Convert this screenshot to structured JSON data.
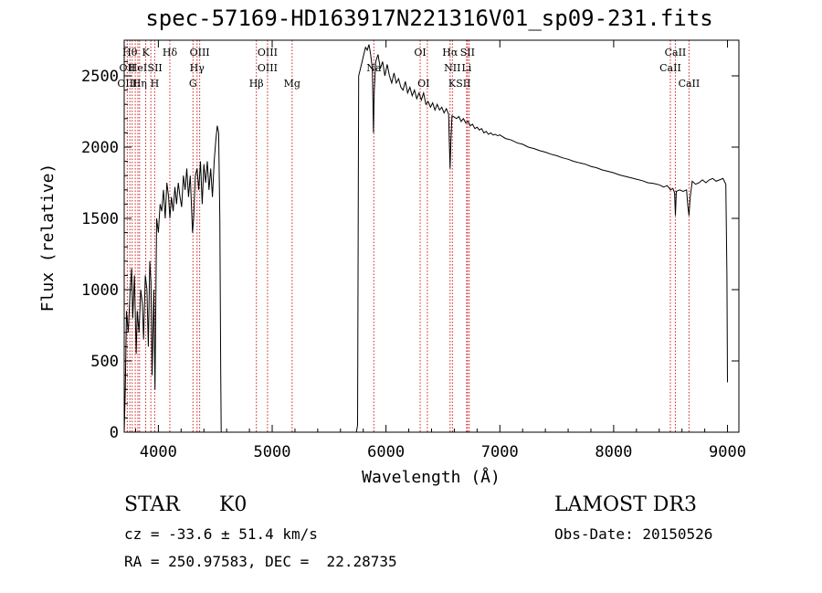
{
  "header": {
    "title": "spec-57169-HD163917N221316V01_sp09-231.fits"
  },
  "chart_data": {
    "type": "line",
    "title": "spec-57169-HD163917N221316V01_sp09-231.fits",
    "xlabel": "Wavelength (Å)",
    "ylabel": "Flux (relative)",
    "xlim": [
      3700,
      9100
    ],
    "ylim": [
      0,
      2750
    ],
    "xticks": [
      4000,
      5000,
      6000,
      7000,
      8000,
      9000
    ],
    "yticks": [
      0,
      500,
      1000,
      1500,
      2000,
      2500
    ],
    "series": [
      {
        "name": "spectrum",
        "segments": [
          [
            [
              3700,
              0
            ],
            [
              3710,
              300
            ],
            [
              3720,
              850
            ],
            [
              3735,
              700
            ],
            [
              3750,
              950
            ],
            [
              3765,
              1150
            ],
            [
              3775,
              800
            ],
            [
              3790,
              1100
            ],
            [
              3805,
              550
            ],
            [
              3815,
              850
            ],
            [
              3830,
              700
            ],
            [
              3845,
              1000
            ],
            [
              3860,
              900
            ],
            [
              3870,
              650
            ],
            [
              3885,
              1100
            ],
            [
              3900,
              1000
            ],
            [
              3912,
              600
            ],
            [
              3925,
              1200
            ],
            [
              3935,
              1050
            ],
            [
              3945,
              400
            ],
            [
              3960,
              1000
            ],
            [
              3970,
              300
            ],
            [
              3985,
              1500
            ],
            [
              4000,
              1400
            ],
            [
              4015,
              1600
            ],
            [
              4030,
              1550
            ],
            [
              4045,
              1700
            ],
            [
              4060,
              1500
            ],
            [
              4075,
              1750
            ],
            [
              4090,
              1650
            ],
            [
              4101,
              1500
            ],
            [
              4115,
              1650
            ],
            [
              4130,
              1550
            ],
            [
              4145,
              1720
            ],
            [
              4160,
              1600
            ],
            [
              4175,
              1750
            ],
            [
              4190,
              1650
            ],
            [
              4205,
              1580
            ],
            [
              4220,
              1800
            ],
            [
              4235,
              1700
            ],
            [
              4250,
              1850
            ],
            [
              4265,
              1650
            ],
            [
              4280,
              1800
            ],
            [
              4300,
              1400
            ],
            [
              4310,
              1500
            ],
            [
              4325,
              1800
            ],
            [
              4340,
              1850
            ],
            [
              4355,
              1700
            ],
            [
              4370,
              1900
            ],
            [
              4385,
              1600
            ],
            [
              4400,
              1880
            ],
            [
              4415,
              1750
            ],
            [
              4430,
              1900
            ],
            [
              4445,
              1700
            ],
            [
              4460,
              1850
            ],
            [
              4475,
              1650
            ],
            [
              4490,
              1900
            ],
            [
              4505,
              2050
            ],
            [
              4518,
              2150
            ],
            [
              4530,
              2100
            ],
            [
              4540,
              1500
            ],
            [
              4548,
              400
            ],
            [
              4552,
              0
            ]
          ],
          [
            [
              5740,
              0
            ],
            [
              5750,
              50
            ],
            [
              5760,
              2500
            ],
            [
              5775,
              2550
            ],
            [
              5790,
              2600
            ],
            [
              5805,
              2650
            ],
            [
              5820,
              2700
            ],
            [
              5835,
              2680
            ],
            [
              5850,
              2720
            ],
            [
              5865,
              2650
            ],
            [
              5880,
              2550
            ],
            [
              5890,
              2100
            ],
            [
              5893,
              2250
            ],
            [
              5897,
              2400
            ],
            [
              5910,
              2600
            ],
            [
              5930,
              2650
            ],
            [
              5950,
              2550
            ],
            [
              5970,
              2600
            ],
            [
              5990,
              2500
            ],
            [
              6010,
              2580
            ],
            [
              6030,
              2500
            ],
            [
              6050,
              2450
            ],
            [
              6070,
              2520
            ],
            [
              6090,
              2450
            ],
            [
              6110,
              2480
            ],
            [
              6130,
              2420
            ],
            [
              6150,
              2400
            ],
            [
              6170,
              2460
            ],
            [
              6190,
              2380
            ],
            [
              6210,
              2420
            ],
            [
              6230,
              2360
            ],
            [
              6250,
              2400
            ],
            [
              6270,
              2340
            ],
            [
              6290,
              2380
            ],
            [
              6310,
              2330
            ],
            [
              6330,
              2380
            ],
            [
              6350,
              2300
            ],
            [
              6370,
              2320
            ],
            [
              6390,
              2280
            ],
            [
              6410,
              2310
            ],
            [
              6430,
              2260
            ],
            [
              6450,
              2300
            ],
            [
              6470,
              2260
            ],
            [
              6490,
              2280
            ],
            [
              6510,
              2240
            ],
            [
              6530,
              2270
            ],
            [
              6550,
              2230
            ],
            [
              6556,
              2050
            ],
            [
              6563,
              1850
            ],
            [
              6570,
              2050
            ],
            [
              6580,
              2220
            ],
            [
              6600,
              2210
            ],
            [
              6620,
              2200
            ],
            [
              6640,
              2215
            ],
            [
              6660,
              2180
            ],
            [
              6680,
              2200
            ],
            [
              6700,
              2170
            ],
            [
              6720,
              2180
            ],
            [
              6740,
              2150
            ],
            [
              6760,
              2160
            ],
            [
              6780,
              2130
            ],
            [
              6800,
              2140
            ],
            [
              6820,
              2120
            ],
            [
              6840,
              2130
            ],
            [
              6860,
              2100
            ],
            [
              6880,
              2110
            ],
            [
              6900,
              2090
            ],
            [
              6920,
              2100
            ],
            [
              6940,
              2085
            ],
            [
              6960,
              2090
            ],
            [
              6980,
              2080
            ],
            [
              7000,
              2085
            ],
            [
              7050,
              2060
            ],
            [
              7100,
              2050
            ],
            [
              7150,
              2030
            ],
            [
              7200,
              2020
            ],
            [
              7250,
              2000
            ],
            [
              7300,
              1990
            ],
            [
              7350,
              1975
            ],
            [
              7400,
              1965
            ],
            [
              7450,
              1950
            ],
            [
              7500,
              1940
            ],
            [
              7550,
              1925
            ],
            [
              7600,
              1915
            ],
            [
              7650,
              1900
            ],
            [
              7700,
              1890
            ],
            [
              7750,
              1880
            ],
            [
              7800,
              1865
            ],
            [
              7850,
              1855
            ],
            [
              7900,
              1840
            ],
            [
              7950,
              1830
            ],
            [
              8000,
              1820
            ],
            [
              8050,
              1805
            ],
            [
              8100,
              1795
            ],
            [
              8150,
              1785
            ],
            [
              8200,
              1775
            ],
            [
              8250,
              1765
            ],
            [
              8300,
              1750
            ],
            [
              8350,
              1745
            ],
            [
              8400,
              1735
            ],
            [
              8440,
              1720
            ],
            [
              8470,
              1730
            ],
            [
              8500,
              1700
            ],
            [
              8520,
              1710
            ],
            [
              8535,
              1680
            ],
            [
              8542,
              1520
            ],
            [
              8550,
              1690
            ],
            [
              8580,
              1700
            ],
            [
              8610,
              1690
            ],
            [
              8640,
              1700
            ],
            [
              8652,
              1580
            ],
            [
              8662,
              1520
            ],
            [
              8672,
              1650
            ],
            [
              8690,
              1760
            ],
            [
              8720,
              1740
            ],
            [
              8750,
              1750
            ],
            [
              8780,
              1770
            ],
            [
              8810,
              1750
            ],
            [
              8840,
              1770
            ],
            [
              8870,
              1780
            ],
            [
              8900,
              1760
            ],
            [
              8930,
              1770
            ],
            [
              8960,
              1780
            ],
            [
              8985,
              1740
            ],
            [
              8995,
              1100
            ],
            [
              9000,
              350
            ]
          ]
        ]
      }
    ],
    "emission_line_labels": [
      {
        "wl": 3750,
        "name": "Hθ",
        "row": 1
      },
      {
        "wl": 3727,
        "name": "OII",
        "row": 2
      },
      {
        "wl": 3727,
        "name": "OIII",
        "row": 3
      },
      {
        "wl": 3889,
        "name": "K",
        "row": 1
      },
      {
        "wl": 3820,
        "name": "HeI",
        "row": 2
      },
      {
        "wl": 3970,
        "name": "SII",
        "row": 2
      },
      {
        "wl": 3835,
        "name": "Hη",
        "row": 3
      },
      {
        "wl": 3968,
        "name": "H",
        "row": 3
      },
      {
        "wl": 4101,
        "name": "Hδ",
        "row": 1
      },
      {
        "wl": 4363,
        "name": "OIII",
        "row": 1
      },
      {
        "wl": 4340,
        "name": "Hγ",
        "row": 2
      },
      {
        "wl": 4304,
        "name": "G",
        "row": 3
      },
      {
        "wl": 4959,
        "name": "OIII",
        "row": 1
      },
      {
        "wl": 4959,
        "name": "OIII",
        "row": 2
      },
      {
        "wl": 4861,
        "name": "Hβ",
        "row": 3
      },
      {
        "wl": 5175,
        "name": "Mg",
        "row": 3
      },
      {
        "wl": 5893,
        "name": "Na",
        "row": 2
      },
      {
        "wl": 6300,
        "name": "OI",
        "row": 1
      },
      {
        "wl": 6330,
        "name": "OI",
        "row": 3
      },
      {
        "wl": 6563,
        "name": "Hα",
        "row": 1
      },
      {
        "wl": 6583,
        "name": "NII",
        "row": 2
      },
      {
        "wl": 6716,
        "name": "SII",
        "row": 1
      },
      {
        "wl": 6708,
        "name": "Li",
        "row": 2
      },
      {
        "wl": 6680,
        "name": "SII",
        "row": 3
      },
      {
        "wl": 6580,
        "name": "K",
        "row": 3
      },
      {
        "wl": 8542,
        "name": "CaII",
        "row": 1
      },
      {
        "wl": 8498,
        "name": "CaII",
        "row": 2
      },
      {
        "wl": 8662,
        "name": "CaII",
        "row": 3
      }
    ],
    "absorption_line_marks": [
      3727,
      3750,
      3770,
      3797,
      3820,
      3835,
      3889,
      3934,
      3968,
      4101,
      4304,
      4340,
      4363,
      4861,
      4959,
      5175,
      5893,
      6300,
      6363,
      6563,
      6583,
      6708,
      6716,
      6731,
      8498,
      8542,
      8662
    ]
  },
  "info": {
    "class": "STAR",
    "subclass": "K0",
    "survey": "LAMOST DR3",
    "cz": "cz = -33.6 ± 51.4 km/s",
    "obs_date": "Obs-Date: 20150526",
    "coords": "RA = 250.97583, DEC =  22.28735"
  }
}
